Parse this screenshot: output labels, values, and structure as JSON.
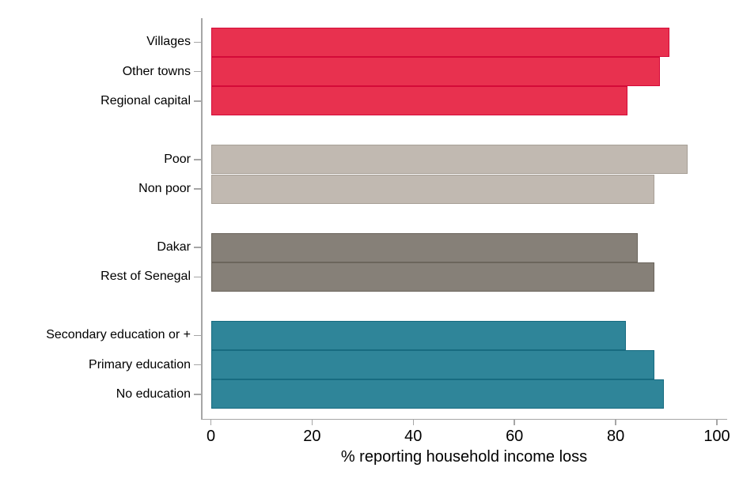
{
  "chart_data": {
    "type": "bar",
    "orientation": "horizontal",
    "title": "",
    "xlabel": "% reporting household income loss",
    "ylabel": "",
    "xlim": [
      0,
      100
    ],
    "x_ticks": [
      0,
      20,
      40,
      60,
      80,
      100
    ],
    "grid": false,
    "legend": "none",
    "groups": [
      {
        "name": "location-type",
        "color": "#e8314f",
        "border_color": "#d40a38",
        "bars": [
          {
            "label": "Villages",
            "value": 90.6
          },
          {
            "label": "Other towns",
            "value": 88.7
          },
          {
            "label": "Regional capital",
            "value": 82.3
          }
        ]
      },
      {
        "name": "poverty-status",
        "color": "#c1b9b1",
        "border_color": "#a79f96",
        "bars": [
          {
            "label": "Poor",
            "value": 94.2
          },
          {
            "label": "Non poor",
            "value": 87.6
          }
        ]
      },
      {
        "name": "region",
        "color": "#868078",
        "border_color": "#6b655c",
        "bars": [
          {
            "label": "Dakar",
            "value": 84.3
          },
          {
            "label": "Rest of Senegal",
            "value": 87.6
          }
        ]
      },
      {
        "name": "education",
        "color": "#2f8599",
        "border_color": "#176b80",
        "bars": [
          {
            "label": "Secondary education or +",
            "value": 82.0
          },
          {
            "label": "Primary education",
            "value": 87.7
          },
          {
            "label": "No education",
            "value": 89.6
          }
        ]
      }
    ]
  },
  "colors": {
    "background": "#ffffff",
    "axis": "#a6a6a6",
    "text": "#000000"
  }
}
